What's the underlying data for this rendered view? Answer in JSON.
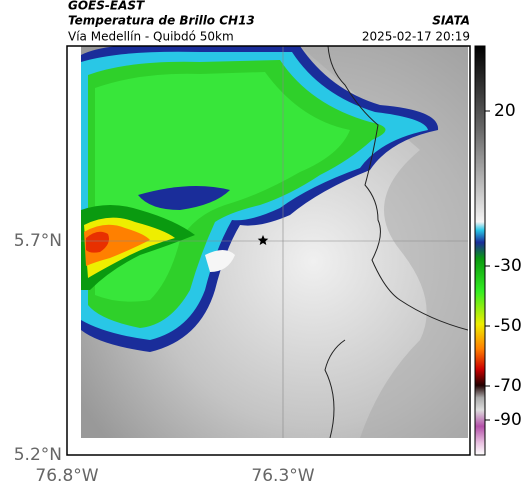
{
  "header": {
    "source": "GOES-EAST",
    "title": "Temperatura de Brillo CH13",
    "brand": "SIATA",
    "subtitle": "Vía Medellín - Quibdó 50km",
    "datetime": "2025-02-17 20:19"
  },
  "map": {
    "lat_labels": [
      "5.7°N",
      "5.2°N"
    ],
    "lon_labels": [
      "76.8°W",
      "76.3°W"
    ]
  },
  "colorbar": {
    "ticks": [
      20,
      -30,
      -50,
      -70,
      -90
    ]
  }
}
